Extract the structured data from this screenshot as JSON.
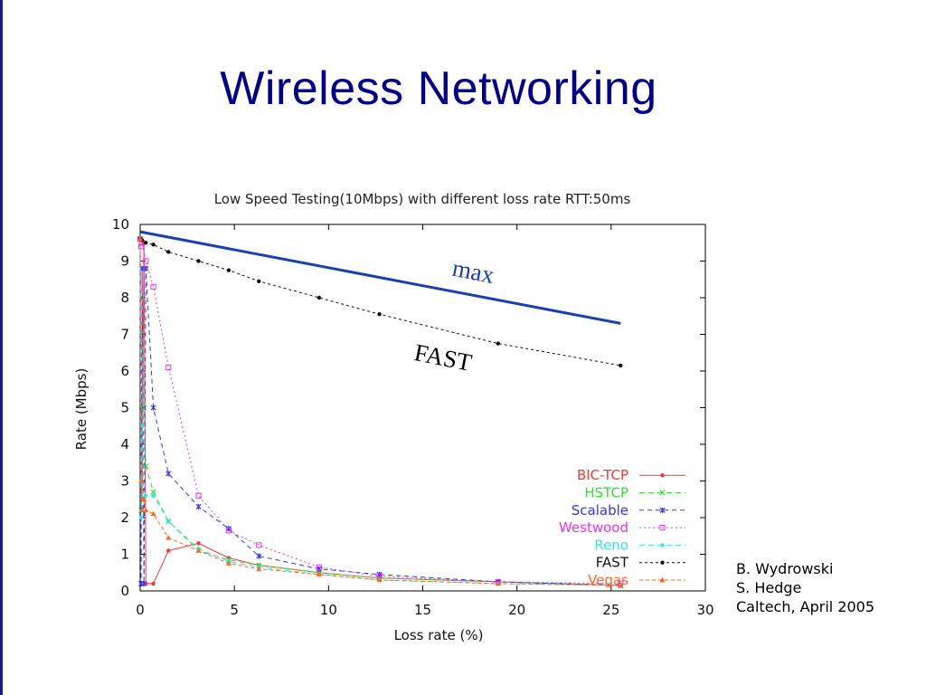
{
  "slide": {
    "title": "Wireless Networking",
    "credits": [
      "B. Wydrowski",
      "S. Hedge",
      "Caltech, April 2005"
    ]
  },
  "chart_data": {
    "type": "line",
    "title": "Low Speed Testing(10Mbps) with different loss rate RTT:50ms",
    "xlabel": "Loss rate (%)",
    "ylabel": "Rate (Mbps)",
    "xlim": [
      0,
      30
    ],
    "ylim": [
      0,
      10
    ],
    "xticks": [
      0,
      5,
      10,
      15,
      20,
      25,
      30
    ],
    "yticks": [
      0,
      1,
      2,
      3,
      4,
      5,
      6,
      7,
      8,
      9,
      10
    ],
    "grid": false,
    "legend_position": "lower-right",
    "series": [
      {
        "name": "BIC-TCP",
        "color": "#ff3333",
        "dash": "none",
        "marker": "dot",
        "points": [
          [
            0,
            9.6
          ],
          [
            0.05,
            3.4
          ],
          [
            0.1,
            2.5
          ],
          [
            0.2,
            9.5
          ],
          [
            0.3,
            0.2
          ],
          [
            0.7,
            0.2
          ],
          [
            1.5,
            1.1
          ],
          [
            3.1,
            1.3
          ],
          [
            4.7,
            0.9
          ],
          [
            6.3,
            0.7
          ],
          [
            9.5,
            0.5
          ],
          [
            12.7,
            0.35
          ],
          [
            19.0,
            0.25
          ],
          [
            25.5,
            0.15
          ]
        ]
      },
      {
        "name": "HSTCP",
        "color": "#33dd33",
        "dash": "6,4",
        "marker": "x",
        "points": [
          [
            0,
            9.6
          ],
          [
            0.05,
            2.2
          ],
          [
            0.1,
            8.0
          ],
          [
            0.2,
            5.0
          ],
          [
            0.3,
            3.4
          ],
          [
            0.7,
            2.7
          ],
          [
            1.5,
            1.9
          ],
          [
            3.1,
            1.1
          ],
          [
            4.7,
            0.85
          ],
          [
            6.3,
            0.7
          ],
          [
            9.5,
            0.5
          ],
          [
            12.7,
            0.35
          ],
          [
            19.0,
            0.25
          ],
          [
            25.5,
            0.15
          ]
        ]
      },
      {
        "name": "Scalable",
        "color": "#3333ff",
        "dash": "5,4",
        "marker": "star",
        "points": [
          [
            0,
            9.6
          ],
          [
            0.05,
            0.2
          ],
          [
            0.1,
            8.8
          ],
          [
            0.2,
            0.2
          ],
          [
            0.3,
            8.8
          ],
          [
            0.7,
            5.0
          ],
          [
            1.5,
            3.2
          ],
          [
            3.1,
            2.3
          ],
          [
            4.7,
            1.7
          ],
          [
            6.3,
            0.95
          ],
          [
            9.5,
            0.6
          ],
          [
            12.7,
            0.45
          ],
          [
            19.0,
            0.25
          ],
          [
            25.5,
            0.15
          ]
        ]
      },
      {
        "name": "Westwood",
        "color": "#ee33ee",
        "dash": "2,3",
        "marker": "square",
        "points": [
          [
            0,
            9.6
          ],
          [
            0.05,
            9.4
          ],
          [
            0.1,
            9.5
          ],
          [
            0.3,
            9.0
          ],
          [
            0.7,
            8.3
          ],
          [
            1.5,
            6.1
          ],
          [
            3.1,
            2.6
          ],
          [
            4.7,
            1.65
          ],
          [
            6.3,
            1.25
          ],
          [
            9.5,
            0.65
          ],
          [
            12.7,
            0.4
          ],
          [
            19.0,
            0.25
          ],
          [
            25.5,
            0.2
          ]
        ]
      },
      {
        "name": "Reno",
        "color": "#33e6e6",
        "dash": "6,4",
        "marker": "dot",
        "points": [
          [
            0,
            9.6
          ],
          [
            0.05,
            2.0
          ],
          [
            0.1,
            4.5
          ],
          [
            0.2,
            2.5
          ],
          [
            0.3,
            2.6
          ],
          [
            0.7,
            2.6
          ],
          [
            1.5,
            1.9
          ],
          [
            3.1,
            1.15
          ],
          [
            4.7,
            0.8
          ],
          [
            6.3,
            0.65
          ],
          [
            9.5,
            0.45
          ],
          [
            12.7,
            0.3
          ],
          [
            19.0,
            0.2
          ],
          [
            25.5,
            0.15
          ]
        ]
      },
      {
        "name": "FAST",
        "color": "#111111",
        "dash": "3,3",
        "marker": "dot",
        "points": [
          [
            0,
            9.6
          ],
          [
            0.1,
            9.57
          ],
          [
            0.3,
            9.5
          ],
          [
            0.7,
            9.45
          ],
          [
            1.5,
            9.25
          ],
          [
            3.1,
            9.0
          ],
          [
            4.7,
            8.75
          ],
          [
            6.3,
            8.45
          ],
          [
            9.5,
            8.0
          ],
          [
            12.7,
            7.55
          ],
          [
            19.0,
            6.75
          ],
          [
            25.5,
            6.15
          ]
        ]
      },
      {
        "name": "Vegas",
        "color": "#ff6622",
        "dash": "4,3",
        "marker": "triangle",
        "points": [
          [
            0,
            9.6
          ],
          [
            0.05,
            3.0
          ],
          [
            0.1,
            2.2
          ],
          [
            0.2,
            2.5
          ],
          [
            0.3,
            2.2
          ],
          [
            0.7,
            2.1
          ],
          [
            1.5,
            1.45
          ],
          [
            3.1,
            1.1
          ],
          [
            4.7,
            0.75
          ],
          [
            6.3,
            0.6
          ],
          [
            9.5,
            0.45
          ],
          [
            12.7,
            0.3
          ],
          [
            19.0,
            0.2
          ],
          [
            25.5,
            0.15
          ]
        ]
      }
    ],
    "overlays": [
      {
        "name": "max",
        "label": "max",
        "color": "#1a3fb0",
        "points": [
          [
            0,
            9.8
          ],
          [
            25.5,
            7.3
          ]
        ]
      }
    ],
    "annotations": [
      {
        "text": "max",
        "x": 17.6,
        "y": 8.5,
        "rotate": 11,
        "color": "#1a3fb0"
      },
      {
        "text": "FAST",
        "x": 16.0,
        "y": 6.15,
        "rotate": 11,
        "color": "#000000"
      }
    ]
  }
}
